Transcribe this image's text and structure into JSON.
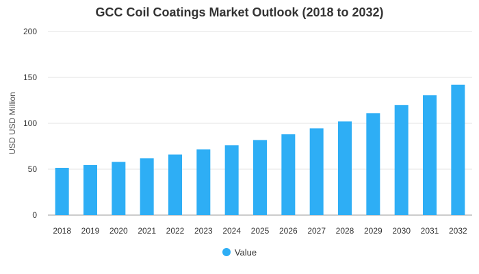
{
  "chart_data": {
    "type": "bar",
    "title": "GCC Coil Coatings Market Outlook (2018 to 2032)",
    "xlabel": "",
    "ylabel": "USD USD Million",
    "ylim": [
      0,
      200
    ],
    "yticks": [
      0,
      50,
      100,
      150,
      200
    ],
    "grid": true,
    "legend_position": "bottom",
    "categories": [
      "2018",
      "2019",
      "2020",
      "2021",
      "2022",
      "2023",
      "2024",
      "2025",
      "2026",
      "2027",
      "2028",
      "2029",
      "2030",
      "2031",
      "2032"
    ],
    "series": [
      {
        "name": "Value",
        "color": "#2EAEF5",
        "values": [
          51.5,
          54.5,
          58.0,
          61.8,
          66.0,
          71.5,
          76.0,
          81.8,
          88.0,
          94.5,
          102.0,
          111.0,
          120.0,
          130.5,
          142.0
        ]
      }
    ]
  }
}
